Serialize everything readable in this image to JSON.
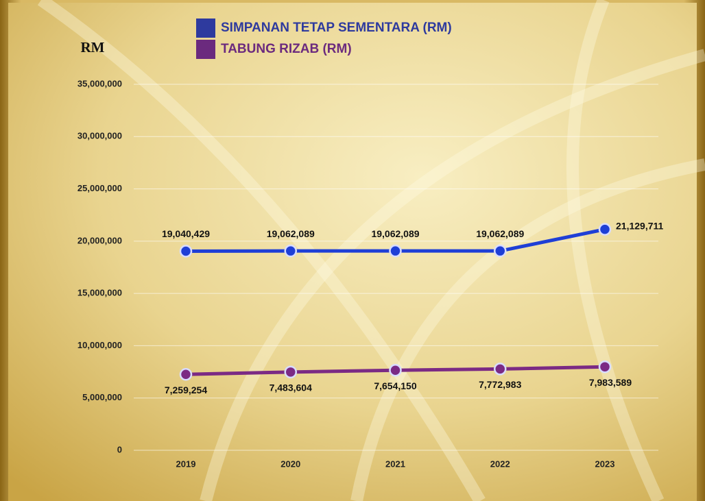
{
  "chart_data": {
    "type": "line",
    "ylabel": "RM",
    "categories": [
      "2019",
      "2020",
      "2021",
      "2022",
      "2023"
    ],
    "series": [
      {
        "name": "SIMPANAN TETAP SEMENTARA (RM)",
        "color": "#1f3fd6",
        "values": [
          19040429,
          19062089,
          19062089,
          19062089,
          21129711
        ],
        "value_labels": [
          "19,040,429",
          "19,062,089",
          "19,062,089",
          "19,062,089",
          "21,129,711"
        ]
      },
      {
        "name": "TABUNG RIZAB (RM)",
        "color": "#7b2a84",
        "values": [
          7259254,
          7483604,
          7654150,
          7772983,
          7983589
        ],
        "value_labels": [
          "7,259,254",
          "7,483,604",
          "7,654,150",
          "7,772,983",
          "7,983,589"
        ]
      }
    ],
    "ylim": [
      0,
      35000000
    ],
    "yticks": [
      0,
      {
        "value": 5000000,
        "label": "5,000,000"
      },
      {
        "value": 10000000,
        "label": "10,000,000"
      },
      {
        "value": 15000000,
        "label": "15,000,000"
      },
      {
        "value": 20000000,
        "label": "20,000,000"
      },
      {
        "value": 25000000,
        "label": "25,000,000"
      },
      {
        "value": 30000000,
        "label": "30,000,000"
      },
      {
        "value": 35000000,
        "label": "35,000,000"
      }
    ],
    "grid": true
  }
}
